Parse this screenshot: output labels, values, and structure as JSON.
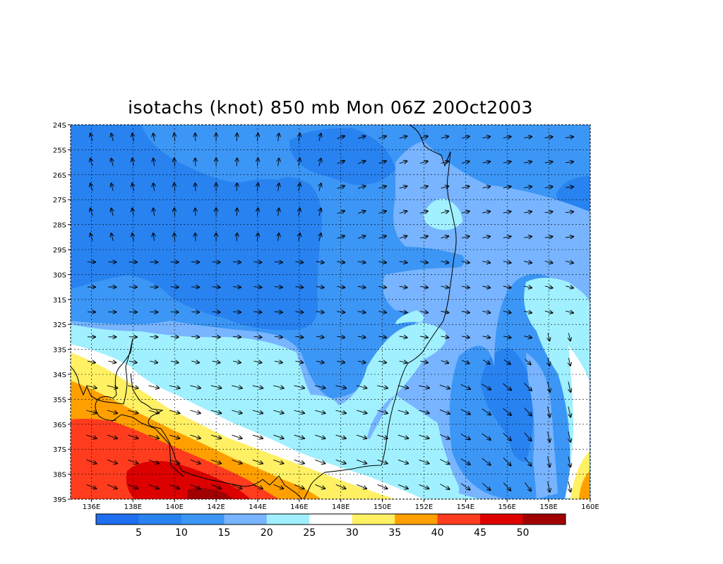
{
  "title": "isotachs (knot) 850 mb Mon 06Z 20Oct2003",
  "lat_labels": [
    "24S",
    "25S",
    "26S",
    "27S",
    "28S",
    "29S",
    "30S",
    "31S",
    "32S",
    "33S",
    "34S",
    "35S",
    "36S",
    "37S",
    "38S",
    "39S"
  ],
  "lon_labels": [
    "136E",
    "138E",
    "140E",
    "142E",
    "144E",
    "146E",
    "148E",
    "150E",
    "152E",
    "154E",
    "156E",
    "158E",
    "160E"
  ],
  "map_extent": {
    "lon": [
      135,
      160
    ],
    "lat": [
      -39,
      -24
    ]
  },
  "colorbar": {
    "colors": [
      "#1e6ef0",
      "#2882f0",
      "#3c96f5",
      "#78b4ff",
      "#a0f0ff",
      "#ffffff",
      "#fff064",
      "#ffa000",
      "#ff3c1e",
      "#dc0000",
      "#a00000"
    ],
    "labels": [
      "5",
      "10",
      "15",
      "20",
      "25",
      "30",
      "35",
      "40",
      "45",
      "50"
    ]
  },
  "contour_levels": [
    5,
    10,
    15,
    20,
    25,
    30,
    35,
    40,
    45,
    50
  ],
  "colors": {
    "c10": "#2882f0",
    "c15": "#3c96f5",
    "c20": "#78b4ff",
    "c25": "#a0f0ff",
    "c30": "#ffffff",
    "c35": "#fff064",
    "c40": "#ffa000",
    "c45": "#ff3c1e",
    "c50": "#dc0000",
    "c55": "#a00000",
    "coast": "#000000",
    "grid": "#000000"
  }
}
